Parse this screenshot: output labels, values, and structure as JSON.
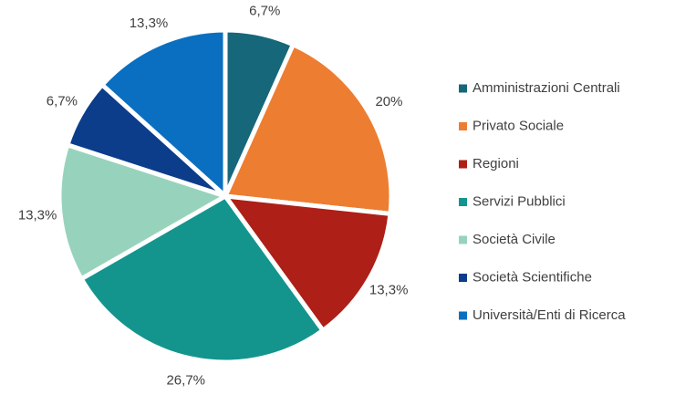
{
  "chart_data": {
    "type": "pie",
    "categories": [
      "Amministrazioni Centrali",
      "Privato Sociale",
      "Regioni",
      "Servizi Pubblici",
      "Società Civile",
      "Società Scientifiche",
      "Università/Enti di Ricerca"
    ],
    "values": [
      6.7,
      20,
      13.3,
      26.7,
      13.3,
      6.7,
      13.3
    ],
    "value_labels": [
      "6,7%",
      "20%",
      "13,3%",
      "26,7%",
      "13,3%",
      "6,7%",
      "13,3%"
    ],
    "colors": [
      "#16677a",
      "#ed7d31",
      "#ad1f17",
      "#13958e",
      "#97d3bc",
      "#0c3d8a",
      "#0a6fc0"
    ],
    "legend": "right"
  }
}
